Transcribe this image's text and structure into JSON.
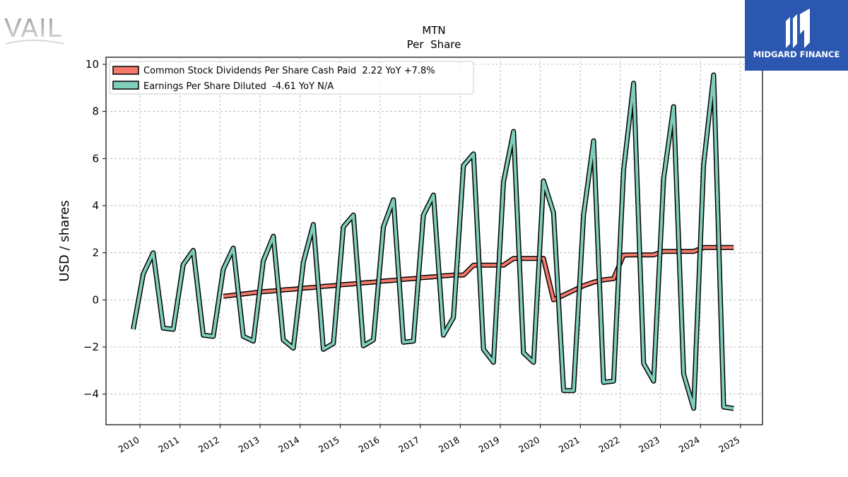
{
  "brand": {
    "left_logo_text": "VAIL",
    "right_logo_text": "MIDGARD FINANCE",
    "right_logo_bg": "#2b57b0"
  },
  "chart_data": {
    "type": "line",
    "title": "MTN",
    "subtitle": "Per  Share",
    "ylabel": "USD / shares",
    "xlabel": "",
    "ylim": [
      -5.3,
      10.3
    ],
    "xlim": [
      2009.15,
      2025.55
    ],
    "yticks": [
      -4,
      -2,
      0,
      2,
      4,
      6,
      8,
      10
    ],
    "ytick_labels": [
      "−4",
      "−2",
      "0",
      "2",
      "4",
      "6",
      "8",
      "10"
    ],
    "xtick_positions": [
      2010,
      2011,
      2012,
      2013,
      2014,
      2015,
      2016,
      2017,
      2018,
      2019,
      2020,
      2021,
      2022,
      2023,
      2024,
      2025
    ],
    "xtick_labels": [
      "2010",
      "2011",
      "2012",
      "2013",
      "2014",
      "2015",
      "2016",
      "2017",
      "2018",
      "2019",
      "2020",
      "2021",
      "2022",
      "2023",
      "2024",
      "2025"
    ],
    "grid": true,
    "legend_position": "top-left",
    "series": [
      {
        "name": "Common Stock Dividends Per Share Cash Paid  2.22 YoY +7.8%",
        "color": "#f4796b",
        "x": [
          2012.08,
          2012.33,
          2012.58,
          2012.83,
          2013.08,
          2013.33,
          2013.58,
          2013.83,
          2014.08,
          2014.33,
          2014.58,
          2014.83,
          2015.08,
          2015.33,
          2015.58,
          2015.83,
          2016.08,
          2016.33,
          2016.58,
          2016.83,
          2017.08,
          2017.33,
          2017.58,
          2017.83,
          2018.08,
          2018.33,
          2018.58,
          2018.83,
          2019.08,
          2019.33,
          2019.58,
          2019.83,
          2020.08,
          2020.33,
          2020.58,
          2020.83,
          2021.08,
          2021.33,
          2021.58,
          2021.83,
          2022.08,
          2022.33,
          2022.58,
          2022.83,
          2023.08,
          2023.33,
          2023.58,
          2023.83,
          2024.08,
          2024.33,
          2024.58,
          2024.83
        ],
        "values": [
          0.15,
          0.2,
          0.25,
          0.3,
          0.35,
          0.38,
          0.42,
          0.45,
          0.5,
          0.53,
          0.57,
          0.6,
          0.65,
          0.68,
          0.72,
          0.75,
          0.8,
          0.83,
          0.87,
          0.9,
          0.95,
          0.98,
          1.02,
          1.05,
          1.05,
          1.47,
          1.47,
          1.47,
          1.47,
          1.76,
          1.76,
          1.76,
          1.76,
          0.0,
          0.2,
          0.4,
          0.6,
          0.75,
          0.85,
          0.9,
          1.9,
          1.91,
          1.91,
          1.91,
          2.06,
          2.06,
          2.06,
          2.06,
          2.22,
          2.22,
          2.22,
          2.22
        ]
      },
      {
        "name": "Earnings Per Share Diluted  -4.61 YoY N/A",
        "color": "#7fcdbb",
        "x": [
          2009.83,
          2010.08,
          2010.33,
          2010.58,
          2010.83,
          2011.08,
          2011.33,
          2011.58,
          2011.83,
          2012.08,
          2012.33,
          2012.58,
          2012.83,
          2013.08,
          2013.33,
          2013.58,
          2013.83,
          2014.08,
          2014.33,
          2014.58,
          2014.83,
          2015.08,
          2015.33,
          2015.58,
          2015.83,
          2016.08,
          2016.33,
          2016.58,
          2016.83,
          2017.08,
          2017.33,
          2017.58,
          2017.83,
          2018.08,
          2018.33,
          2018.58,
          2018.83,
          2019.08,
          2019.33,
          2019.58,
          2019.83,
          2020.08,
          2020.33,
          2020.58,
          2020.83,
          2021.08,
          2021.33,
          2021.58,
          2021.83,
          2022.08,
          2022.33,
          2022.58,
          2022.83,
          2023.08,
          2023.33,
          2023.58,
          2023.83,
          2024.08,
          2024.33,
          2024.58,
          2024.83
        ],
        "values": [
          -1.25,
          1.1,
          2.0,
          -1.2,
          -1.25,
          1.5,
          2.1,
          -1.5,
          -1.55,
          1.3,
          2.2,
          -1.55,
          -1.75,
          1.65,
          2.7,
          -1.7,
          -2.05,
          1.6,
          3.2,
          -2.1,
          -1.85,
          3.1,
          3.6,
          -1.95,
          -1.7,
          3.1,
          4.25,
          -1.8,
          -1.75,
          3.6,
          4.45,
          -1.5,
          -0.75,
          5.7,
          6.2,
          -2.1,
          -2.65,
          5.0,
          7.15,
          -2.25,
          -2.65,
          5.05,
          3.7,
          -3.85,
          -3.85,
          3.6,
          6.75,
          -3.5,
          -3.45,
          5.5,
          9.2,
          -2.7,
          -3.45,
          5.15,
          8.2,
          -3.15,
          -4.6,
          5.75,
          9.55,
          -4.55,
          -4.61
        ]
      }
    ]
  }
}
